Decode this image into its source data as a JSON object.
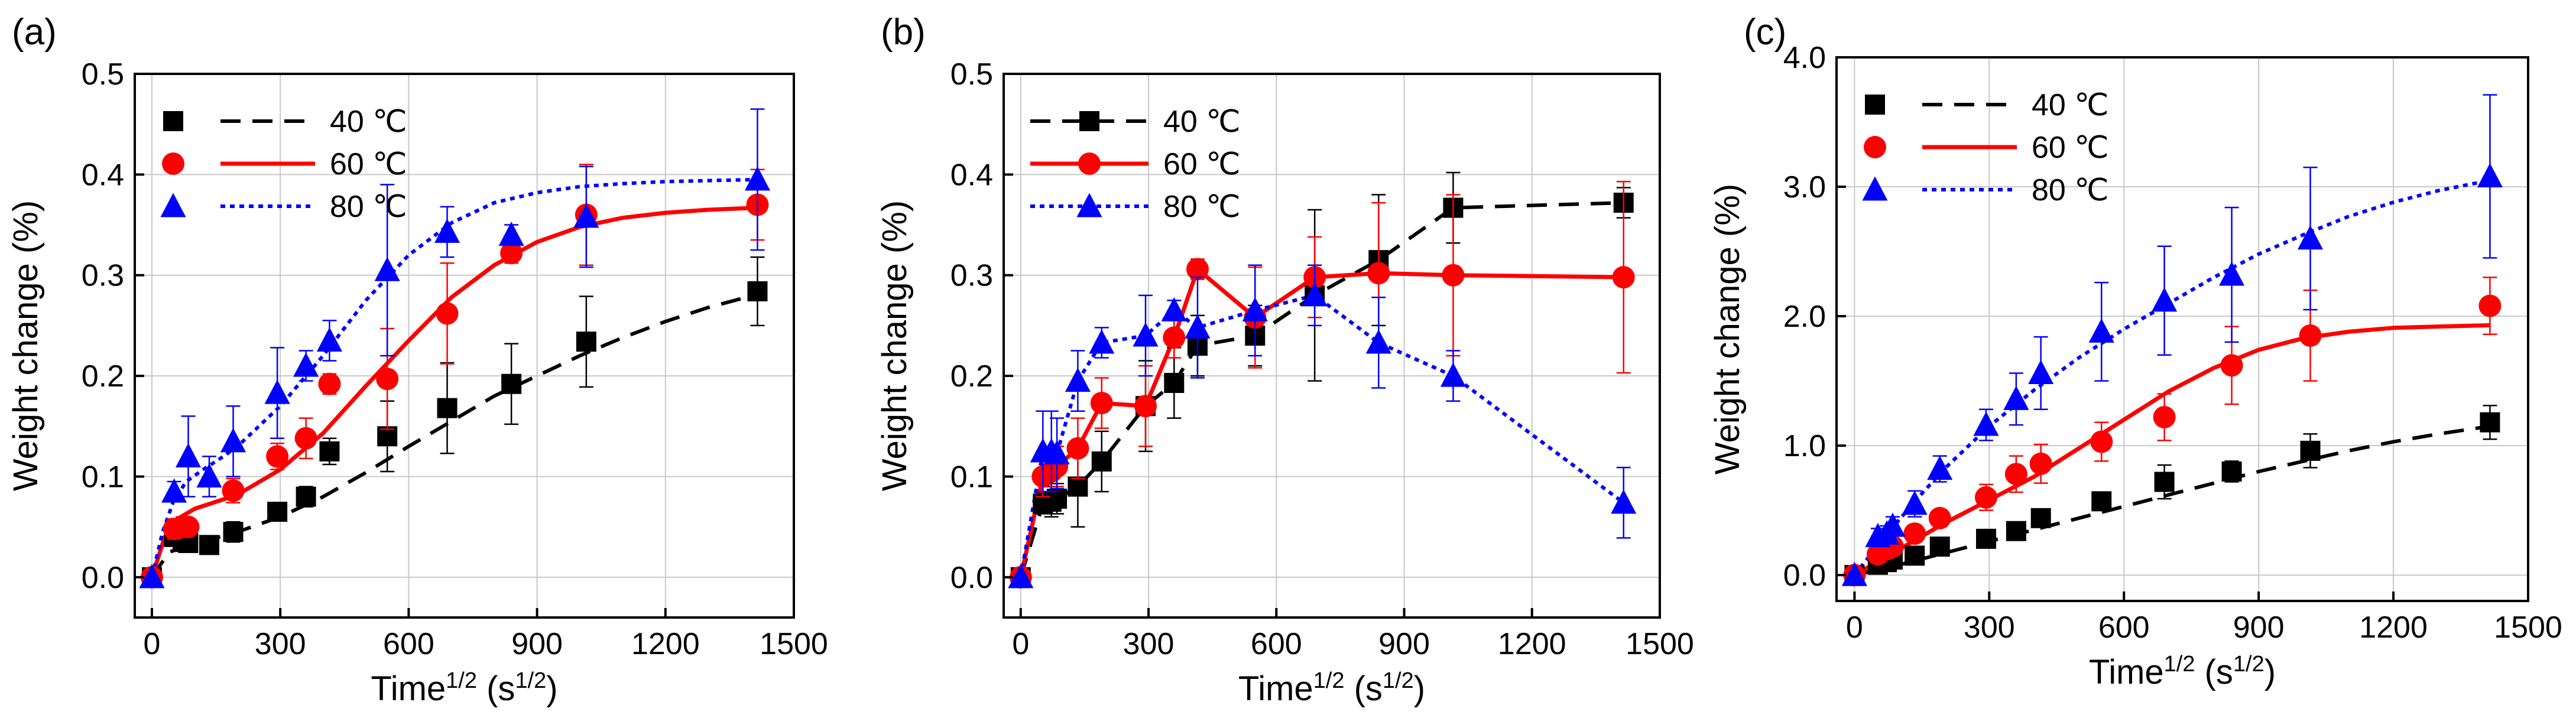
{
  "colors": {
    "c40": "#000000",
    "c60": "#ff0000",
    "c80": "#0000ff",
    "grid": "#c8c8c8"
  },
  "legend_labels": {
    "t40": "40 ℃",
    "t60": "60 ℃",
    "t80": "80 ℃"
  },
  "chart_data": [
    {
      "panel": "(a)",
      "type": "scatter",
      "xlabel": "Time",
      "xlabel_sup": "1/2",
      "xlabel_unit_prefix": " (s",
      "xlabel_unit_sup": "1/2",
      "xlabel_unit_suffix": ")",
      "ylabel": "Weight change (%)",
      "xlim": [
        -40,
        1500
      ],
      "ylim": [
        -0.04,
        0.5
      ],
      "xticks": [
        0,
        300,
        600,
        900,
        1200,
        1500
      ],
      "xtick_labels": [
        "0",
        "300",
        "600",
        "900",
        "1200",
        "1500"
      ],
      "yticks": [
        0,
        0.1,
        0.2,
        0.3,
        0.4,
        0.5
      ],
      "ytick_labels": [
        "0.0",
        "0.1",
        "0.2",
        "0.3",
        "0.4",
        "0.5"
      ],
      "legend": "top-left",
      "series": [
        {
          "name": "40 ℃",
          "marker": "square",
          "x": [
            0,
            52,
            72,
            85,
            134,
            190,
            293,
            360,
            415,
            550,
            690,
            840,
            1015,
            1415
          ],
          "y": [
            0.0,
            0.04,
            0.035,
            0.034,
            0.032,
            0.045,
            0.065,
            0.08,
            0.125,
            0.14,
            0.168,
            0.192,
            0.234,
            0.284
          ],
          "err": [
            0,
            0.005,
            0.005,
            0.005,
            0.005,
            0.01,
            0.006,
            0.01,
            0.013,
            0.035,
            0.045,
            0.04,
            0.045,
            0.034
          ],
          "fit_style": "dashed",
          "fit_x": [
            0,
            40,
            100,
            200,
            300,
            400,
            500,
            600,
            700,
            800,
            900,
            1000,
            1100,
            1200,
            1300,
            1415
          ],
          "fit_y": [
            0.0,
            0.025,
            0.033,
            0.045,
            0.06,
            0.08,
            0.104,
            0.13,
            0.155,
            0.18,
            0.2,
            0.22,
            0.238,
            0.254,
            0.268,
            0.281
          ]
        },
        {
          "name": "60 ℃",
          "marker": "circle",
          "x": [
            0,
            52,
            72,
            85,
            190,
            293,
            360,
            415,
            550,
            690,
            840,
            1015,
            1415
          ],
          "y": [
            0.0,
            0.048,
            0.05,
            0.05,
            0.086,
            0.12,
            0.138,
            0.192,
            0.197,
            0.262,
            0.322,
            0.36,
            0.37
          ],
          "err": [
            0,
            0.01,
            0.01,
            0.008,
            0.012,
            0.013,
            0.02,
            0.01,
            0.05,
            0.05,
            0.01,
            0.05,
            0.035
          ],
          "fit_style": "solid",
          "fit_x": [
            0,
            30,
            60,
            100,
            150,
            200,
            300,
            400,
            500,
            600,
            700,
            800,
            900,
            1000,
            1100,
            1200,
            1300,
            1415
          ],
          "fit_y": [
            0.0,
            0.04,
            0.058,
            0.068,
            0.075,
            0.082,
            0.107,
            0.143,
            0.19,
            0.235,
            0.278,
            0.31,
            0.333,
            0.348,
            0.357,
            0.362,
            0.365,
            0.367
          ]
        },
        {
          "name": "80 ℃",
          "marker": "triangle",
          "x": [
            0,
            52,
            85,
            134,
            190,
            293,
            360,
            415,
            550,
            690,
            840,
            1015,
            1415
          ],
          "y": [
            0.0,
            0.085,
            0.12,
            0.1,
            0.135,
            0.183,
            0.21,
            0.235,
            0.305,
            0.343,
            0.34,
            0.358,
            0.395
          ],
          "err": [
            0,
            0.01,
            0.04,
            0.02,
            0.035,
            0.045,
            0.015,
            0.02,
            0.085,
            0.025,
            0.01,
            0.05,
            0.07
          ],
          "fit_style": "dotted",
          "fit_x": [
            0,
            25,
            50,
            80,
            120,
            160,
            200,
            300,
            400,
            500,
            600,
            700,
            800,
            900,
            1000,
            1100,
            1200,
            1300,
            1415
          ],
          "fit_y": [
            0.0,
            0.045,
            0.075,
            0.095,
            0.107,
            0.118,
            0.13,
            0.17,
            0.22,
            0.275,
            0.32,
            0.352,
            0.372,
            0.382,
            0.388,
            0.391,
            0.393,
            0.394,
            0.395
          ]
        }
      ]
    },
    {
      "panel": "(b)",
      "type": "line",
      "xlabel": "Time",
      "xlabel_sup": "1/2",
      "xlabel_unit_prefix": " (s",
      "xlabel_unit_sup": "1/2",
      "xlabel_unit_suffix": ")",
      "ylabel": "Weight change (%)",
      "xlim": [
        -40,
        1500
      ],
      "ylim": [
        -0.04,
        0.5
      ],
      "xticks": [
        0,
        300,
        600,
        900,
        1200,
        1500
      ],
      "xtick_labels": [
        "0",
        "300",
        "600",
        "900",
        "1200",
        "1500"
      ],
      "yticks": [
        0,
        0.1,
        0.2,
        0.3,
        0.4,
        0.5
      ],
      "ytick_labels": [
        "0.0",
        "0.1",
        "0.2",
        "0.3",
        "0.4",
        "0.5"
      ],
      "legend": "top-left",
      "series": [
        {
          "name": "40 ℃",
          "marker": "square",
          "x": [
            0,
            52,
            72,
            85,
            134,
            190,
            293,
            360,
            415,
            550,
            690,
            840,
            1015,
            1415
          ],
          "y": [
            0.0,
            0.073,
            0.075,
            0.078,
            0.09,
            0.115,
            0.17,
            0.193,
            0.23,
            0.24,
            0.28,
            0.315,
            0.367,
            0.372
          ],
          "err": [
            0,
            0.01,
            0.015,
            0.015,
            0.04,
            0.03,
            0.045,
            0.035,
            0.03,
            0.03,
            0.085,
            0.065,
            0.035,
            0.015
          ],
          "line_style": "dashed"
        },
        {
          "name": "60 ℃",
          "marker": "circle",
          "x": [
            0,
            52,
            72,
            85,
            134,
            190,
            293,
            360,
            415,
            550,
            690,
            840,
            1015,
            1415
          ],
          "y": [
            0.0,
            0.1,
            0.105,
            0.11,
            0.128,
            0.173,
            0.17,
            0.238,
            0.306,
            0.258,
            0.298,
            0.302,
            0.3,
            0.298
          ],
          "err": [
            0,
            0.02,
            0.02,
            0.02,
            0.03,
            0.025,
            0.04,
            0.02,
            0.01,
            0.05,
            0.04,
            0.07,
            0.08,
            0.095
          ],
          "line_style": "solid"
        },
        {
          "name": "80 ℃",
          "marker": "triangle",
          "x": [
            0,
            52,
            72,
            85,
            134,
            190,
            293,
            360,
            415,
            550,
            690,
            840,
            1015,
            1415
          ],
          "y": [
            0.0,
            0.125,
            0.125,
            0.123,
            0.195,
            0.233,
            0.24,
            0.265,
            0.248,
            0.265,
            0.28,
            0.233,
            0.2,
            0.074
          ],
          "err": [
            0,
            0.04,
            0.04,
            0.035,
            0.03,
            0.015,
            0.04,
            0.01,
            0.05,
            0.045,
            0.03,
            0.045,
            0.025,
            0.035
          ],
          "line_style": "dotted"
        }
      ]
    },
    {
      "panel": "(c)",
      "type": "scatter",
      "xlabel": "Time",
      "xlabel_sup": "1/2",
      "xlabel_unit_prefix": " (s",
      "xlabel_unit_sup": "1/2",
      "xlabel_unit_suffix": ")",
      "ylabel": "Weight change (%)",
      "xlim": [
        -40,
        1500
      ],
      "ylim": [
        -0.2,
        4.0
      ],
      "xticks": [
        0,
        300,
        600,
        900,
        1200,
        1500
      ],
      "xtick_labels": [
        "0",
        "300",
        "600",
        "900",
        "1200",
        "1500"
      ],
      "yticks": [
        0,
        1,
        2,
        3,
        4
      ],
      "ytick_labels": [
        "0.0",
        "1.0",
        "2.0",
        "3.0",
        "4.0"
      ],
      "legend": "top-left",
      "series": [
        {
          "name": "40 ℃",
          "marker": "square",
          "x": [
            0,
            52,
            72,
            85,
            134,
            190,
            293,
            360,
            415,
            550,
            690,
            840,
            1015,
            1415
          ],
          "y": [
            0.0,
            0.08,
            0.1,
            0.12,
            0.15,
            0.22,
            0.28,
            0.34,
            0.44,
            0.57,
            0.72,
            0.8,
            0.96,
            1.18
          ],
          "err": [
            0,
            0.02,
            0.02,
            0.02,
            0.03,
            0.04,
            0.05,
            0.06,
            0.06,
            0.07,
            0.13,
            0.08,
            0.13,
            0.13
          ],
          "fit_style": "dashed",
          "fit_x": [
            0,
            100,
            200,
            300,
            400,
            500,
            600,
            700,
            800,
            900,
            1000,
            1100,
            1200,
            1300,
            1415
          ],
          "fit_y": [
            0.0,
            0.08,
            0.17,
            0.26,
            0.35,
            0.44,
            0.53,
            0.62,
            0.71,
            0.8,
            0.88,
            0.96,
            1.03,
            1.09,
            1.15
          ]
        },
        {
          "name": "60 ℃",
          "marker": "circle",
          "x": [
            0,
            52,
            72,
            85,
            134,
            190,
            293,
            360,
            415,
            550,
            690,
            840,
            1015,
            1415
          ],
          "y": [
            0.0,
            0.16,
            0.2,
            0.22,
            0.32,
            0.44,
            0.6,
            0.78,
            0.86,
            1.03,
            1.22,
            1.62,
            1.85,
            2.08
          ],
          "err": [
            0,
            0.03,
            0.04,
            0.04,
            0.06,
            0.06,
            0.1,
            0.14,
            0.15,
            0.15,
            0.18,
            0.3,
            0.35,
            0.22
          ],
          "fit_style": "solid",
          "fit_x": [
            0,
            50,
            100,
            150,
            200,
            300,
            400,
            500,
            600,
            700,
            800,
            900,
            1000,
            1100,
            1200,
            1300,
            1415
          ],
          "fit_y": [
            0.0,
            0.1,
            0.2,
            0.3,
            0.4,
            0.58,
            0.76,
            0.98,
            1.2,
            1.42,
            1.6,
            1.74,
            1.83,
            1.88,
            1.91,
            1.92,
            1.93
          ]
        },
        {
          "name": "80 ℃",
          "marker": "triangle",
          "x": [
            0,
            52,
            72,
            85,
            134,
            190,
            293,
            360,
            415,
            550,
            690,
            840,
            1015,
            1415
          ],
          "y": [
            0.0,
            0.3,
            0.32,
            0.38,
            0.55,
            0.82,
            1.16,
            1.36,
            1.56,
            1.88,
            2.12,
            2.32,
            2.6,
            3.08
          ],
          "err": [
            0,
            0.06,
            0.06,
            0.07,
            0.1,
            0.1,
            0.12,
            0.2,
            0.28,
            0.38,
            0.42,
            0.52,
            0.55,
            0.63
          ],
          "fit_style": "dotted",
          "fit_x": [
            0,
            50,
            100,
            150,
            200,
            300,
            400,
            500,
            600,
            700,
            800,
            900,
            1000,
            1100,
            1200,
            1300,
            1415
          ],
          "fit_y": [
            0.0,
            0.22,
            0.43,
            0.63,
            0.82,
            1.15,
            1.43,
            1.68,
            1.9,
            2.1,
            2.3,
            2.48,
            2.63,
            2.77,
            2.88,
            2.97,
            3.05
          ]
        }
      ]
    }
  ]
}
